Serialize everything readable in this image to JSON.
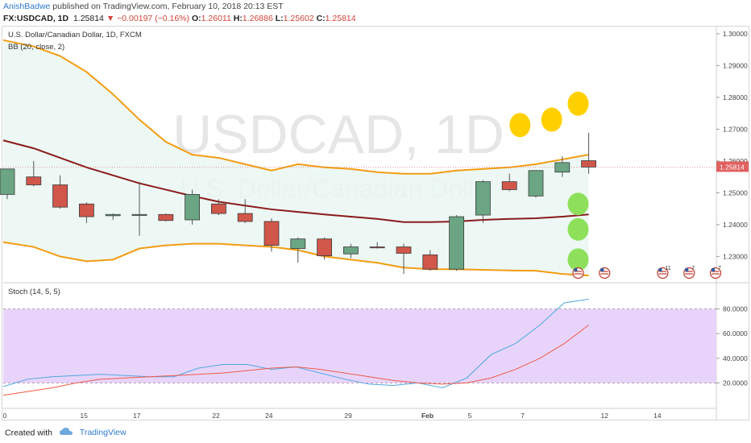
{
  "header": {
    "author": "AnishBadwe",
    "published": "published on TradingView.com, February 10, 2018 20:13 EST",
    "symbol": "FX:USDCAD, 1D",
    "last": "1.25814",
    "arrow": "▼",
    "change": "−0.00197 (−0.16%)",
    "o_label": "O:",
    "o": "1.26011",
    "h_label": "H:",
    "h": "1.26886",
    "l_label": "L:",
    "l": "1.25602",
    "c_label": "C:",
    "c": "1.25814"
  },
  "legend": {
    "instrument": "U.S. Dollar/Canadian Dollar, 1D, FXCM",
    "bb": "BB (20, close, 2)",
    "stoch": "Stoch (14, 5, 5)"
  },
  "watermark": {
    "big": "USDCAD, 1D",
    "small": "U.S. Dollar/Canadian Dollar"
  },
  "footer": {
    "created": "Created with",
    "brand": "TradingView"
  },
  "colors": {
    "up": "#6ba583",
    "down": "#d0574a",
    "bb_band": "#f39c12",
    "bb_basis": "#8b1a1a",
    "bb_fill": "#e8f6f3",
    "stoch_k": "#4ea7e0",
    "stoch_d": "#f05a45",
    "stoch_zone": "#e8d4fb",
    "yellow_marker": "#ffd000",
    "green_marker": "#8ee05a"
  },
  "chart_data": [
    {
      "type": "candlestick",
      "x_ticks": [
        "0",
        "15",
        "17",
        "22",
        "24",
        "29",
        "Feb",
        "5",
        "7",
        "12",
        "14"
      ],
      "ylim": [
        1.222,
        1.302
      ],
      "y_ticks": [
        "1.30000",
        "1.29000",
        "1.28000",
        "1.27000",
        "1.26000",
        "1.25000",
        "1.24000",
        "1.23000"
      ],
      "last_price_label": "1.25814",
      "candles": [
        {
          "o": 1.2495,
          "h": 1.257,
          "l": 1.248,
          "c": 1.2575
        },
        {
          "o": 1.255,
          "h": 1.26,
          "l": 1.252,
          "c": 1.2525
        },
        {
          "o": 1.2525,
          "h": 1.2555,
          "l": 1.245,
          "c": 1.2455
        },
        {
          "o": 1.2465,
          "h": 1.247,
          "l": 1.2405,
          "c": 1.2425
        },
        {
          "o": 1.2428,
          "h": 1.2435,
          "l": 1.2415,
          "c": 1.2432
        },
        {
          "o": 1.243,
          "h": 1.2535,
          "l": 1.2365,
          "c": 1.2432
        },
        {
          "o": 1.2432,
          "h": 1.2435,
          "l": 1.241,
          "c": 1.2413
        },
        {
          "o": 1.2415,
          "h": 1.251,
          "l": 1.24,
          "c": 1.2495
        },
        {
          "o": 1.2465,
          "h": 1.248,
          "l": 1.243,
          "c": 1.2435
        },
        {
          "o": 1.2435,
          "h": 1.248,
          "l": 1.2405,
          "c": 1.241
        },
        {
          "o": 1.241,
          "h": 1.242,
          "l": 1.2315,
          "c": 1.2335
        },
        {
          "o": 1.2325,
          "h": 1.236,
          "l": 1.228,
          "c": 1.2355
        },
        {
          "o": 1.2355,
          "h": 1.236,
          "l": 1.229,
          "c": 1.2302
        },
        {
          "o": 1.2308,
          "h": 1.234,
          "l": 1.2295,
          "c": 1.233
        },
        {
          "o": 1.233,
          "h": 1.2345,
          "l": 1.2325,
          "c": 1.2328
        },
        {
          "o": 1.233,
          "h": 1.234,
          "l": 1.2245,
          "c": 1.231
        },
        {
          "o": 1.2305,
          "h": 1.232,
          "l": 1.2255,
          "c": 1.226
        },
        {
          "o": 1.226,
          "h": 1.243,
          "l": 1.2255,
          "c": 1.2425
        },
        {
          "o": 1.243,
          "h": 1.254,
          "l": 1.2405,
          "c": 1.2535
        },
        {
          "o": 1.2535,
          "h": 1.256,
          "l": 1.2505,
          "c": 1.251
        },
        {
          "o": 1.249,
          "h": 1.257,
          "l": 1.2485,
          "c": 1.257
        },
        {
          "o": 1.2565,
          "h": 1.2615,
          "l": 1.255,
          "c": 1.2595
        },
        {
          "o": 1.2601,
          "h": 1.2689,
          "l": 1.256,
          "c": 1.2581
        }
      ],
      "bb_upper": [
        1.298,
        1.296,
        1.293,
        1.288,
        1.281,
        1.273,
        1.266,
        1.262,
        1.261,
        1.259,
        1.257,
        1.259,
        1.258,
        1.2575,
        1.2565,
        1.256,
        1.256,
        1.257,
        1.2575,
        1.258,
        1.259,
        1.2605,
        1.262
      ],
      "bb_basis": [
        1.2665,
        1.264,
        1.261,
        1.258,
        1.2555,
        1.253,
        1.251,
        1.249,
        1.2472,
        1.246,
        1.2448,
        1.244,
        1.2432,
        1.2425,
        1.2418,
        1.2408,
        1.2408,
        1.241,
        1.2415,
        1.2418,
        1.242,
        1.2425,
        1.2432
      ],
      "bb_lower": [
        1.2345,
        1.233,
        1.23,
        1.2285,
        1.229,
        1.2325,
        1.2335,
        1.234,
        1.234,
        1.2335,
        1.233,
        1.232,
        1.23,
        1.229,
        1.228,
        1.2265,
        1.226,
        1.226,
        1.2258,
        1.2256,
        1.2255,
        1.2245,
        1.224
      ],
      "markers": [
        {
          "type": "yellow",
          "after_bar": 19.4,
          "price": 1.2713
        },
        {
          "type": "yellow",
          "after_bar": 20.6,
          "price": 1.273
        },
        {
          "type": "yellow",
          "after_bar": 21.6,
          "price": 1.278
        },
        {
          "type": "green",
          "after_bar": 21.6,
          "price": 1.2465
        },
        {
          "type": "green",
          "after_bar": 21.6,
          "price": 1.2385
        },
        {
          "type": "green",
          "after_bar": 21.6,
          "price": 1.229
        }
      ],
      "event_flags": [
        {
          "after_bar": 21.6,
          "count": ""
        },
        {
          "after_bar": 22.6,
          "count": ""
        },
        {
          "after_bar": 24.8,
          "count": "11"
        },
        {
          "after_bar": 25.8,
          "count": "7"
        },
        {
          "after_bar": 26.8,
          "count": "7"
        }
      ]
    },
    {
      "type": "line",
      "title": "Stoch (14, 5, 5)",
      "ylim": [
        0,
        100
      ],
      "y_ticks": [
        "80.0000",
        "60.0000",
        "40.0000",
        "20.0000"
      ],
      "band": [
        20,
        80
      ],
      "series": [
        {
          "name": "%K",
          "values": [
            17,
            23,
            25,
            26,
            27,
            26,
            25,
            25,
            32,
            35,
            35,
            31,
            33,
            28,
            23,
            19,
            18,
            20,
            16,
            24,
            43,
            52,
            67,
            85,
            88
          ]
        },
        {
          "name": "%D",
          "values": [
            10,
            13,
            16,
            20,
            23,
            24,
            25,
            26,
            27,
            28,
            30,
            32,
            33,
            31,
            28,
            25,
            22,
            20,
            19,
            20,
            24,
            31,
            40,
            52,
            67
          ]
        }
      ]
    }
  ]
}
